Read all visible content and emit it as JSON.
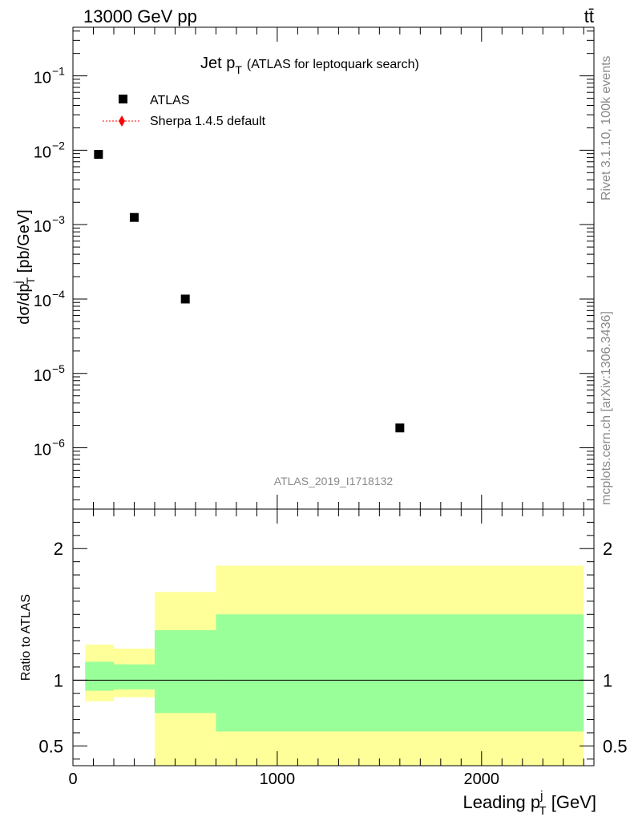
{
  "header": {
    "energy_label": "13000 GeV pp",
    "process_label": "tt̄"
  },
  "side_labels": {
    "rivet": "Rivet 3.1.10,  100k events",
    "mcplots": "mcplots.cern.ch [arXiv:1306.3436]"
  },
  "chart_data": [
    {
      "type": "scatter",
      "title_main": "Jet p",
      "title_sub": "T",
      "title_rest": "(ATLAS for leptoquark search)",
      "analysis_id": "ATLAS_2019_I1718132",
      "ylabel": {
        "a": "dσ/dp",
        "sup": "j",
        "sub": "T",
        "b": " [pb/GeV]"
      },
      "yscale": "log",
      "ylim": [
        1.5e-07,
        0.45
      ],
      "xlim": [
        0,
        2550
      ],
      "ytick_labels": [
        {
          "exp": -1,
          "base": "10",
          "power": "−1"
        },
        {
          "exp": -2,
          "base": "10",
          "power": "−2"
        },
        {
          "exp": -3,
          "base": "10",
          "power": "−3"
        },
        {
          "exp": -4,
          "base": "10",
          "power": "−4"
        },
        {
          "exp": -5,
          "base": "10",
          "power": "−5"
        },
        {
          "exp": -6,
          "base": "10",
          "power": "−6"
        }
      ],
      "legend": [
        {
          "label": "ATLAS",
          "marker": "square",
          "color": "#000000"
        },
        {
          "label": "Sherpa 1.4.5 default",
          "marker": "diamond",
          "color": "#ff0000"
        }
      ],
      "series": [
        {
          "name": "ATLAS",
          "points": [
            {
              "x": 125,
              "y": 0.0088
            },
            {
              "x": 300,
              "y": 0.00125
            },
            {
              "x": 550,
              "y": 0.0001
            },
            {
              "x": 1600,
              "y": 1.85e-06
            }
          ]
        },
        {
          "name": "Sherpa 1.4.5 default",
          "points": []
        }
      ]
    },
    {
      "type": "area",
      "ylabel": "Ratio to ATLAS",
      "xlabel": {
        "a": "Leading p",
        "sup": "j",
        "sub": "T",
        "b": " [GeV]"
      },
      "ylim": [
        0.35,
        2.3
      ],
      "xlim": [
        0,
        2550
      ],
      "xticks": [
        0,
        1000,
        2000
      ],
      "xtick_labels": [
        "0",
        "1000",
        "2000"
      ],
      "yticks": [
        0.5,
        1,
        2
      ],
      "ytick_labels": [
        "0.5",
        "1",
        "2"
      ],
      "reference_line": 1,
      "bins": [
        {
          "x0": 60,
          "x1": 200,
          "inner": [
            0.92,
            1.14
          ],
          "outer": [
            0.84,
            1.27
          ]
        },
        {
          "x0": 200,
          "x1": 400,
          "inner": [
            0.93,
            1.12
          ],
          "outer": [
            0.87,
            1.24
          ]
        },
        {
          "x0": 400,
          "x1": 700,
          "inner": [
            0.75,
            1.38
          ],
          "outer": [
            0.35,
            1.67
          ]
        },
        {
          "x0": 700,
          "x1": 2500,
          "inner": [
            0.61,
            1.5
          ],
          "outer": [
            0.35,
            1.87
          ]
        }
      ],
      "inner_color": "#99ff99",
      "outer_color": "#ffff99"
    }
  ]
}
